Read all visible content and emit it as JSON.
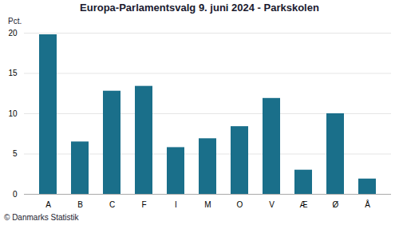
{
  "chart_data": {
    "type": "bar",
    "title": "Europa-Parlamentsvalg 9. juni 2024 - Parkskolen",
    "categories": [
      "A",
      "B",
      "C",
      "F",
      "I",
      "M",
      "O",
      "V",
      "Æ",
      "Ø",
      "Å"
    ],
    "values": [
      19.8,
      6.5,
      12.8,
      13.4,
      5.8,
      6.9,
      8.4,
      11.9,
      3.0,
      10.0,
      1.9
    ],
    "color": "#1a6f8a",
    "ylabel": "Pct.",
    "ylim": [
      0,
      20
    ],
    "yticks": [
      0,
      5,
      10,
      15,
      20
    ],
    "grid": true,
    "footer": "© Danmarks Statistik"
  }
}
